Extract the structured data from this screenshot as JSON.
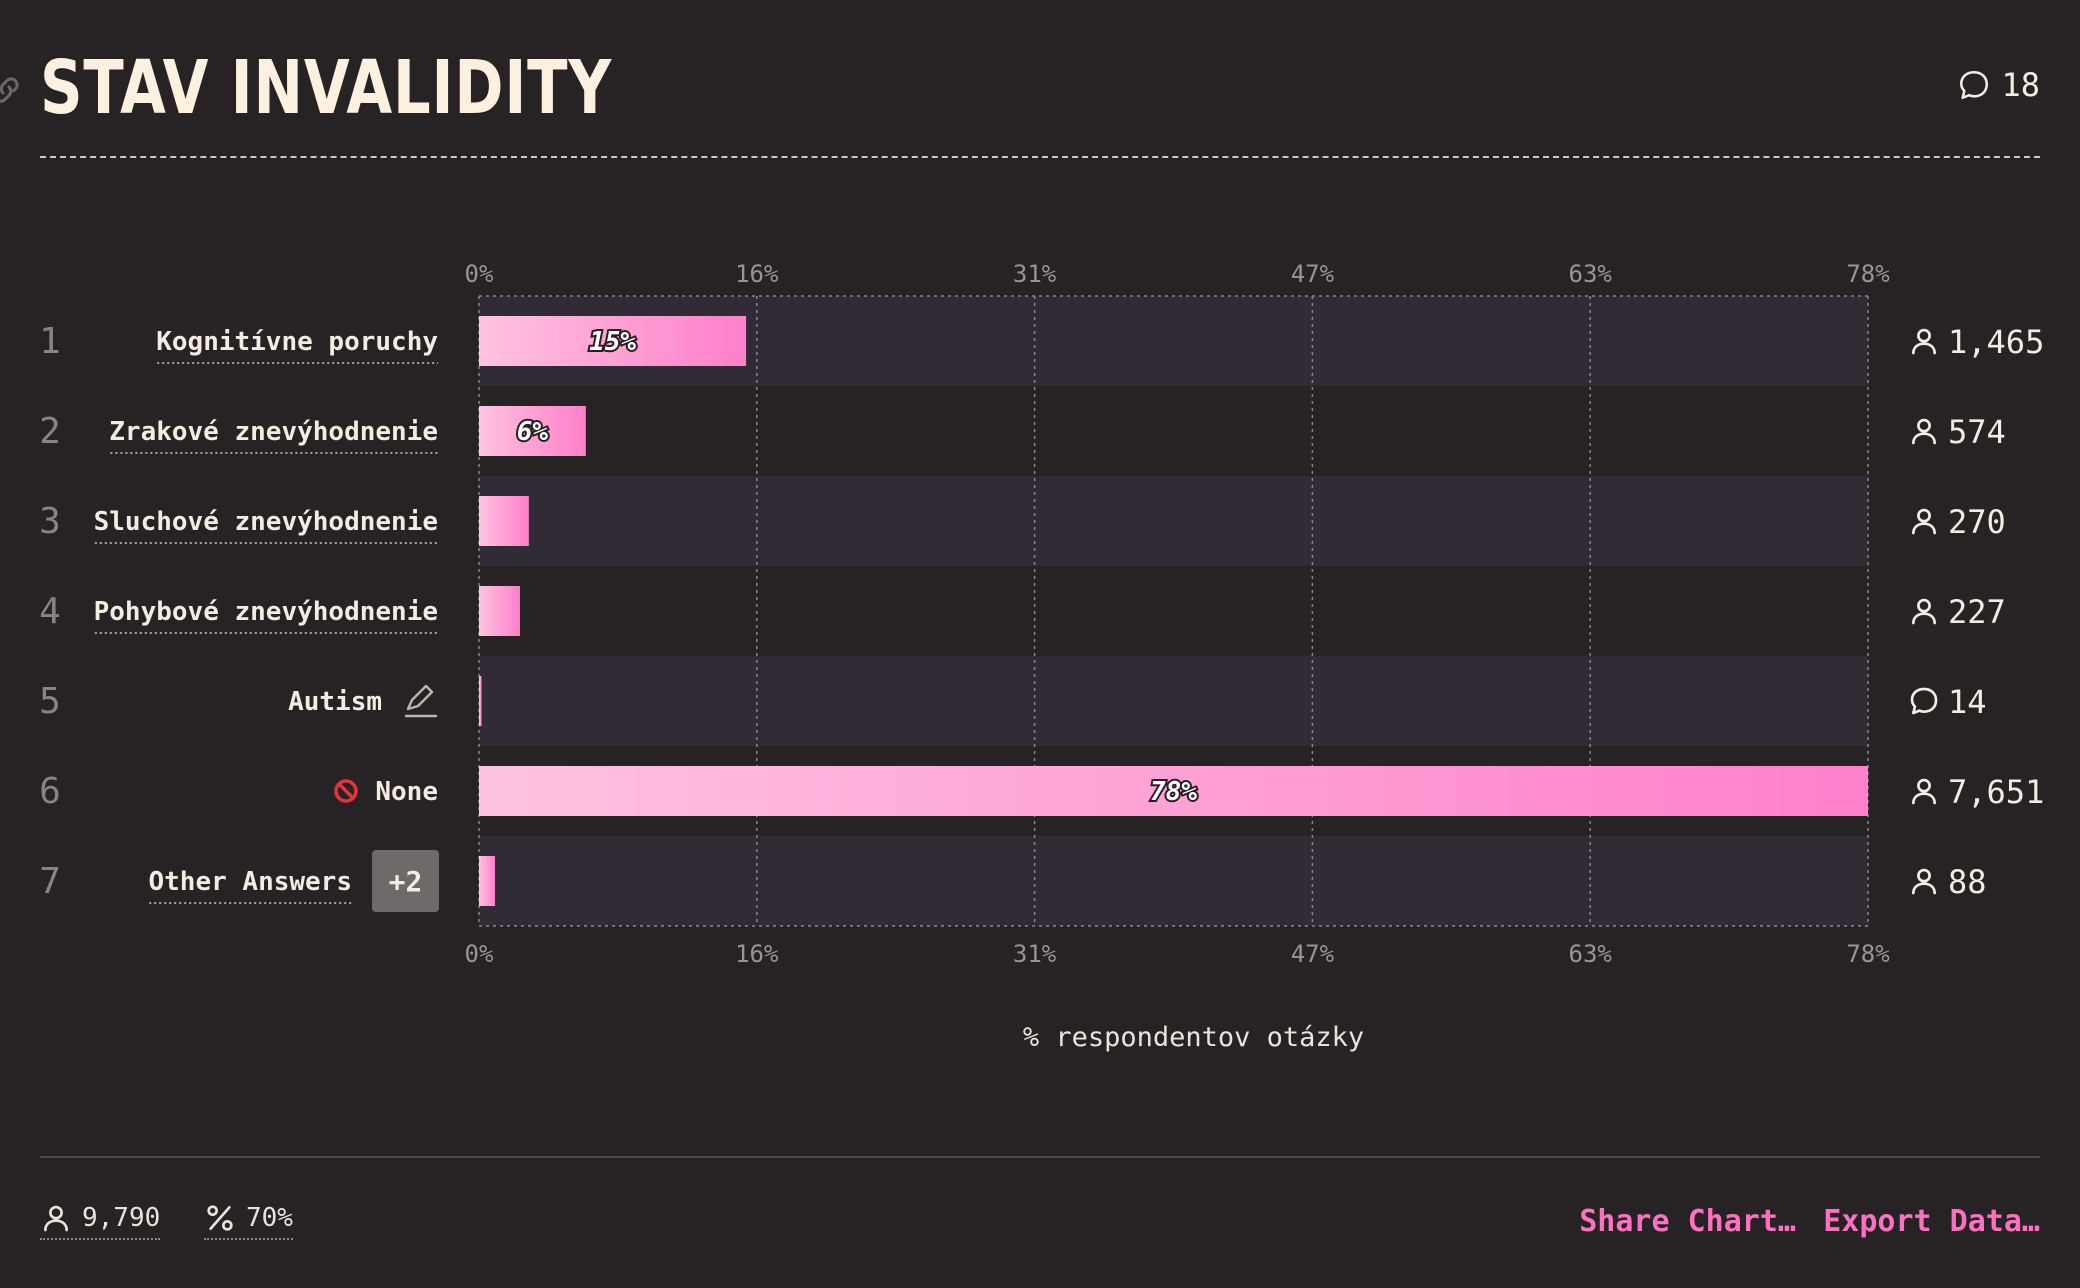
{
  "header": {
    "title": "STAV INVALIDITY",
    "comment_count": "18"
  },
  "chart_data": {
    "type": "bar",
    "orientation": "horizontal",
    "categories": [
      "Kognitívne poruchy",
      "Zrakové znevýhodnenie",
      "Sluchové znevýhodnenie",
      "Pohybové znevýhodnenie",
      "Autism",
      "None",
      "Other Answers"
    ],
    "ranks": [
      "1",
      "2",
      "3",
      "4",
      "5",
      "6",
      "7"
    ],
    "values": [
      15,
      6,
      2.8,
      2.3,
      0.14,
      78,
      0.9
    ],
    "value_labels": [
      "15%",
      "6%",
      "",
      "",
      "",
      "78%",
      ""
    ],
    "counts": [
      "1,465",
      "574",
      "270",
      "227",
      "14",
      "7,651",
      "88"
    ],
    "count_icons": [
      "person-icon",
      "person-icon",
      "person-icon",
      "person-icon",
      "comment-icon",
      "person-icon",
      "person-icon"
    ],
    "other_badge": "+2",
    "xlim": [
      0,
      78
    ],
    "xticks": [
      "0%",
      "16%",
      "31%",
      "47%",
      "63%",
      "78%"
    ],
    "xlabel": "% respondentov otázky",
    "ylabel": "",
    "grid": true
  },
  "footer": {
    "respondents": "9,790",
    "response_rate": "70%",
    "share_label": "Share Chart…",
    "export_label": "Export Data…"
  },
  "colors": {
    "background": "#272325",
    "row_band": "#302b35",
    "bar_start": "#ffc3e0",
    "bar_end": "#ff7fcb",
    "accent": "#ff6fc2"
  }
}
